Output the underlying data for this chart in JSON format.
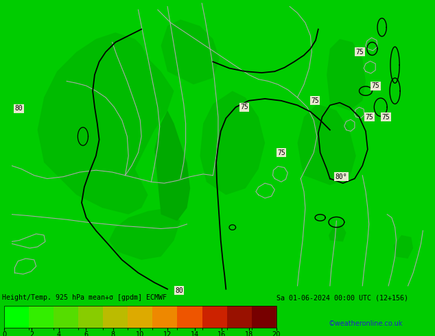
{
  "title_text": "Height/Temp. 925 hPa mean+σ [gpdm] ECMWF",
  "date_text": "Sa 01-06-2024 00:00 UTC (12+156)",
  "credit_text": "©weatheronline.co.uk",
  "colorbar_ticks": [
    0,
    2,
    4,
    6,
    8,
    10,
    12,
    14,
    16,
    18,
    20
  ],
  "cbar_colors": [
    "#00ff00",
    "#33ee00",
    "#55dd00",
    "#88cc00",
    "#bbbb00",
    "#ddaa00",
    "#ee8800",
    "#ee5500",
    "#cc2200",
    "#991100",
    "#770000"
  ],
  "fig_width": 6.34,
  "fig_height": 4.9,
  "dpi": 100,
  "bg_bright": "#00ee00",
  "bg_dark": "#009900",
  "bg_mid": "#00cc00",
  "contour_black": "#000000",
  "border_gray": "#aaaaaa",
  "label_bg": "#e8e8d0"
}
